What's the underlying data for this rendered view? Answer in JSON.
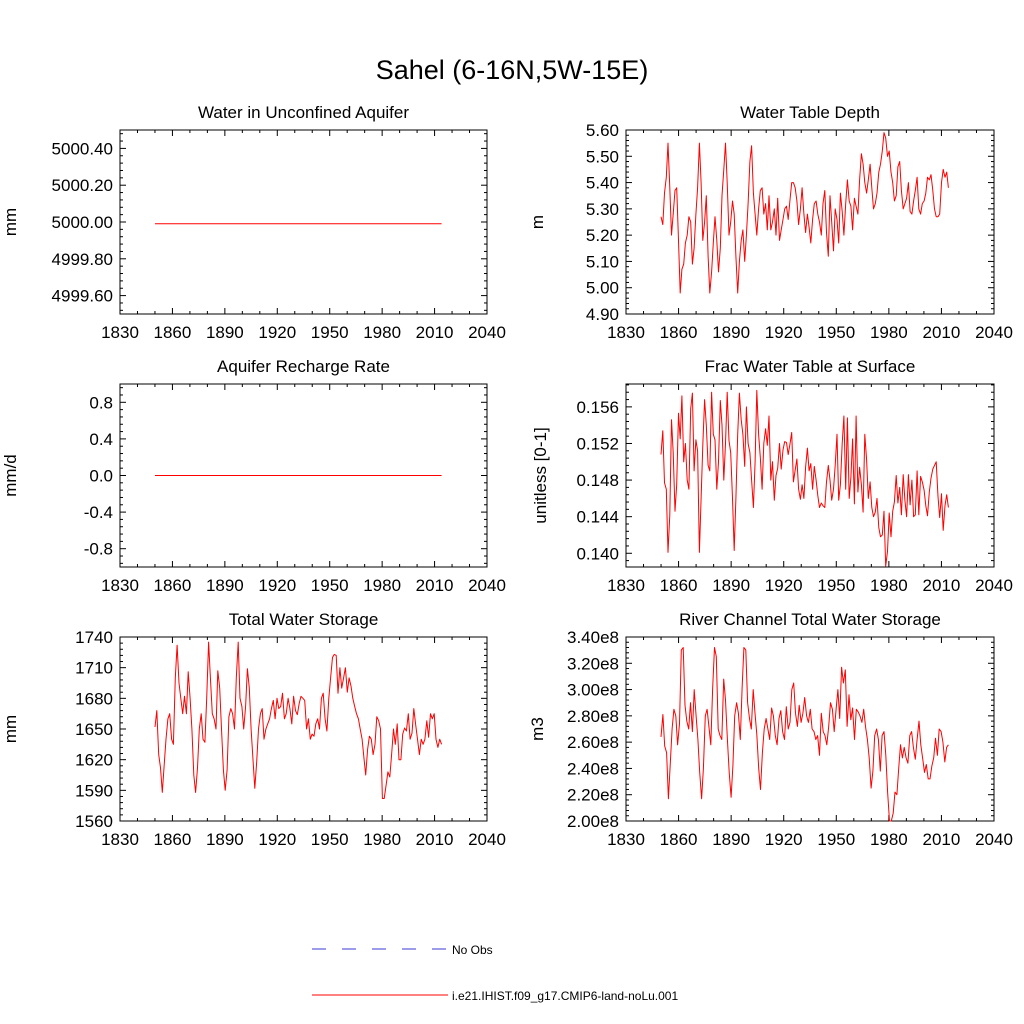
{
  "title": "Sahel (6-16N,5W-15E)",
  "colors": {
    "model": "#ff0000",
    "obs": "#3a3ad6",
    "axis": "#000000"
  },
  "legend": [
    {
      "label": "No Obs",
      "style": "dashed",
      "color": "#3a3ad6"
    },
    {
      "label": "i.e21.IHIST.f09_g17.CMIP6-land-noLu.001",
      "style": "solid",
      "color": "#ff0000"
    }
  ],
  "chart_data": [
    {
      "id": "wa",
      "type": "line",
      "title": "Water in Unconfined Aquifer",
      "ylabel": "mm",
      "xlabel": "",
      "xlim": [
        1830,
        2040
      ],
      "ylim": [
        4999.5,
        5000.5
      ],
      "xticks": [
        1830,
        1860,
        1890,
        1920,
        1950,
        1980,
        2010,
        2040
      ],
      "yticks": [
        "4999.60",
        "4999.80",
        "5000.00",
        "5000.20",
        "5000.40"
      ],
      "ytick_values": [
        4999.6,
        4999.8,
        5000.0,
        5000.2,
        5000.4
      ],
      "x_range": [
        1850,
        2014
      ],
      "series": [
        {
          "values": [
            4999.99,
            4999.99
          ]
        }
      ]
    },
    {
      "id": "wtd",
      "type": "line",
      "title": "Water Table Depth",
      "ylabel": "m",
      "xlabel": "",
      "xlim": [
        1830,
        2040
      ],
      "ylim": [
        4.9,
        5.6
      ],
      "xticks": [
        1830,
        1860,
        1890,
        1920,
        1950,
        1980,
        2010,
        2040
      ],
      "yticks": [
        "4.90",
        "5.00",
        "5.10",
        "5.20",
        "5.30",
        "5.40",
        "5.50",
        "5.60"
      ],
      "ytick_values": [
        4.9,
        5.0,
        5.1,
        5.2,
        5.3,
        5.4,
        5.5,
        5.6
      ],
      "x_range": [
        1850,
        2014
      ],
      "series": [
        {
          "values": [
            5.27,
            5.24,
            5.36,
            5.42,
            5.55,
            5.38,
            5.2,
            5.28,
            5.37,
            5.38,
            5.18,
            4.98,
            5.07,
            5.09,
            5.17,
            5.2,
            5.27,
            5.25,
            5.09,
            5.15,
            5.28,
            5.38,
            5.55,
            5.4,
            5.18,
            5.25,
            5.35,
            5.12,
            4.98,
            5.06,
            5.17,
            5.27,
            5.18,
            5.06,
            5.15,
            5.35,
            5.45,
            5.55,
            5.4,
            5.2,
            5.25,
            5.33,
            5.28,
            5.12,
            4.98,
            5.1,
            5.18,
            5.22,
            5.1,
            5.2,
            5.32,
            5.48,
            5.54,
            5.36,
            5.28,
            5.2,
            5.3,
            5.37,
            5.38,
            5.28,
            5.32,
            5.22,
            5.35,
            5.22,
            5.25,
            5.3,
            5.2,
            5.34,
            5.18,
            5.22,
            5.26,
            5.3,
            5.31,
            5.26,
            5.33,
            5.4,
            5.4,
            5.38,
            5.33,
            5.24,
            5.3,
            5.38,
            5.28,
            5.21,
            5.28,
            5.23,
            5.17,
            5.26,
            5.32,
            5.33,
            5.28,
            5.25,
            5.2,
            5.32,
            5.37,
            5.21,
            5.12,
            5.35,
            5.25,
            5.14,
            5.3,
            5.26,
            5.17,
            5.36,
            5.29,
            5.2,
            5.32,
            5.41,
            5.33,
            5.31,
            5.22,
            5.34,
            5.31,
            5.28,
            5.41,
            5.51,
            5.47,
            5.4,
            5.36,
            5.41,
            5.47,
            5.38,
            5.3,
            5.32,
            5.36,
            5.44,
            5.47,
            5.52,
            5.59,
            5.57,
            5.5,
            5.52,
            5.44,
            5.4,
            5.33,
            5.35,
            5.46,
            5.48,
            5.37,
            5.3,
            5.32,
            5.34,
            5.4,
            5.29,
            5.28,
            5.33,
            5.37,
            5.42,
            5.3,
            5.28,
            5.32,
            5.33,
            5.36,
            5.42,
            5.41,
            5.43,
            5.37,
            5.3,
            5.27,
            5.27,
            5.28,
            5.4,
            5.45,
            5.42,
            5.44,
            5.38
          ]
        }
      ]
    },
    {
      "id": "rch",
      "type": "line",
      "title": "Aquifer Recharge Rate",
      "ylabel": "mm/d",
      "xlabel": "",
      "xlim": [
        1830,
        2040
      ],
      "ylim": [
        -1.0,
        1.0
      ],
      "xticks": [
        1830,
        1860,
        1890,
        1920,
        1950,
        1980,
        2010,
        2040
      ],
      "yticks": [
        "-0.8",
        "-0.4",
        "0.0",
        "0.4",
        "0.8"
      ],
      "ytick_values": [
        -0.8,
        -0.4,
        0.0,
        0.4,
        0.8
      ],
      "x_range": [
        1850,
        2014
      ],
      "series": [
        {
          "values": [
            0.0,
            0.0
          ]
        }
      ]
    },
    {
      "id": "fwt",
      "type": "line",
      "title": "Frac Water Table at Surface",
      "ylabel": "unitless [0-1]",
      "xlabel": "",
      "xlim": [
        1830,
        2040
      ],
      "ylim": [
        0.1385,
        0.1585
      ],
      "xticks": [
        1830,
        1860,
        1890,
        1920,
        1950,
        1980,
        2010,
        2040
      ],
      "yticks": [
        "0.140",
        "0.144",
        "0.148",
        "0.152",
        "0.156"
      ],
      "ytick_values": [
        0.14,
        0.144,
        0.148,
        0.152,
        0.156
      ],
      "x_range": [
        1850,
        2014
      ],
      "series": [
        {
          "values": [
            0.1508,
            0.1534,
            0.1477,
            0.147,
            0.1401,
            0.1442,
            0.1546,
            0.151,
            0.1446,
            0.1475,
            0.1553,
            0.1525,
            0.1572,
            0.15,
            0.152,
            0.148,
            0.147,
            0.1558,
            0.1575,
            0.149,
            0.1524,
            0.1512,
            0.1401,
            0.146,
            0.1518,
            0.1568,
            0.154,
            0.1496,
            0.149,
            0.1576,
            0.153,
            0.1524,
            0.147,
            0.15,
            0.1567,
            0.154,
            0.148,
            0.152,
            0.1576,
            0.1523,
            0.151,
            0.146,
            0.1403,
            0.146,
            0.153,
            0.1575,
            0.1546,
            0.153,
            0.1495,
            0.156,
            0.152,
            0.151,
            0.148,
            0.145,
            0.15,
            0.1578,
            0.153,
            0.1505,
            0.147,
            0.152,
            0.1536,
            0.1518,
            0.155,
            0.148,
            0.15,
            0.1458,
            0.1485,
            0.1493,
            0.152,
            0.1492,
            0.1513,
            0.1522,
            0.1521,
            0.1508,
            0.1519,
            0.1532,
            0.1478,
            0.1491,
            0.1503,
            0.147,
            0.1459,
            0.1475,
            0.146,
            0.1494,
            0.1515,
            0.149,
            0.1498,
            0.147,
            0.1495,
            0.148,
            0.1463,
            0.145,
            0.1455,
            0.1452,
            0.145,
            0.1478,
            0.1496,
            0.148,
            0.1458,
            0.147,
            0.1496,
            0.153,
            0.1458,
            0.1475,
            0.152,
            0.155,
            0.147,
            0.1548,
            0.146,
            0.1483,
            0.1525,
            0.1454,
            0.155,
            0.1467,
            0.1494,
            0.1475,
            0.1445,
            0.153,
            0.1502,
            0.146,
            0.1478,
            0.145,
            0.144,
            0.1445,
            0.146,
            0.1428,
            0.1418,
            0.142,
            0.1446,
            0.1386,
            0.1402,
            0.1444,
            0.1418,
            0.1446,
            0.1456,
            0.1485,
            0.1455,
            0.1472,
            0.1442,
            0.1486,
            0.1458,
            0.144,
            0.1486,
            0.1453,
            0.148,
            0.144,
            0.1442,
            0.149,
            0.1442,
            0.1484,
            0.1478,
            0.1469,
            0.1452,
            0.1441,
            0.1467,
            0.1482,
            0.1492,
            0.1496,
            0.15,
            0.1462,
            0.1439,
            0.1465,
            0.1425,
            0.1452,
            0.1464,
            0.145
          ]
        }
      ]
    },
    {
      "id": "tws",
      "type": "line",
      "title": "Total Water Storage",
      "ylabel": "mm",
      "xlabel": "",
      "xlim": [
        1830,
        2040
      ],
      "ylim": [
        1560,
        1740
      ],
      "xticks": [
        1830,
        1860,
        1890,
        1920,
        1950,
        1980,
        2010,
        2040
      ],
      "yticks": [
        "1560",
        "1590",
        "1620",
        "1650",
        "1680",
        "1710",
        "1740"
      ],
      "ytick_values": [
        1560,
        1590,
        1620,
        1650,
        1680,
        1710,
        1740
      ],
      "x_range": [
        1850,
        2014
      ],
      "series": [
        {
          "values": [
            1652,
            1668,
            1625,
            1612,
            1588,
            1615,
            1640,
            1660,
            1665,
            1640,
            1635,
            1700,
            1732,
            1695,
            1680,
            1665,
            1682,
            1665,
            1706,
            1680,
            1650,
            1605,
            1588,
            1612,
            1650,
            1665,
            1640,
            1637,
            1680,
            1735,
            1700,
            1665,
            1660,
            1650,
            1707,
            1690,
            1650,
            1610,
            1590,
            1610,
            1662,
            1670,
            1665,
            1650,
            1700,
            1735,
            1680,
            1672,
            1650,
            1672,
            1709,
            1690,
            1650,
            1620,
            1592,
            1618,
            1650,
            1665,
            1670,
            1640,
            1650,
            1655,
            1660,
            1670,
            1678,
            1660,
            1680,
            1670,
            1672,
            1685,
            1660,
            1665,
            1680,
            1670,
            1655,
            1682,
            1668,
            1664,
            1675,
            1682,
            1680,
            1678,
            1650,
            1660,
            1640,
            1645,
            1643,
            1655,
            1660,
            1650,
            1680,
            1685,
            1660,
            1648,
            1680,
            1700,
            1720,
            1723,
            1722,
            1685,
            1710,
            1690,
            1700,
            1710,
            1686,
            1700,
            1692,
            1680,
            1672,
            1665,
            1660,
            1650,
            1640,
            1622,
            1605,
            1630,
            1643,
            1640,
            1625,
            1635,
            1662,
            1658,
            1650,
            1582,
            1582,
            1595,
            1608,
            1603,
            1625,
            1650,
            1635,
            1655,
            1620,
            1620,
            1645,
            1651,
            1648,
            1665,
            1640,
            1646,
            1670,
            1654,
            1640,
            1625,
            1640,
            1635,
            1640,
            1658,
            1642,
            1665,
            1660,
            1665,
            1640,
            1632,
            1640,
            1635
          ]
        }
      ]
    },
    {
      "id": "rvr",
      "type": "line",
      "title": "River Channel Total Water Storage",
      "ylabel": "m3",
      "xlabel": "",
      "xlim": [
        1830,
        2040
      ],
      "ylim": [
        200000000,
        340000000
      ],
      "xticks": [
        1830,
        1860,
        1890,
        1920,
        1950,
        1980,
        2010,
        2040
      ],
      "yticks": [
        "2.00e8",
        "2.20e8",
        "2.40e8",
        "2.60e8",
        "2.80e8",
        "3.00e8",
        "3.20e8",
        "3.40e8"
      ],
      "ytick_values": [
        200000000,
        220000000,
        240000000,
        260000000,
        280000000,
        300000000,
        320000000,
        340000000
      ],
      "x_range": [
        1850,
        2014
      ],
      "series": [
        {
          "values": [
            264000000,
            281000000,
            257000000,
            252000000,
            217000000,
            244000000,
            270000000,
            285000000,
            280000000,
            258000000,
            274000000,
            330000000,
            332000000,
            288000000,
            276000000,
            270000000,
            290000000,
            268000000,
            300000000,
            280000000,
            262000000,
            237000000,
            217000000,
            240000000,
            280000000,
            285000000,
            272000000,
            258000000,
            300000000,
            332000000,
            325000000,
            270000000,
            265000000,
            262000000,
            308000000,
            292000000,
            262000000,
            237000000,
            218000000,
            242000000,
            280000000,
            290000000,
            282000000,
            262000000,
            301000000,
            332000000,
            330000000,
            290000000,
            278000000,
            270000000,
            300000000,
            282000000,
            266000000,
            240000000,
            224000000,
            252000000,
            270000000,
            278000000,
            270000000,
            262000000,
            286000000,
            280000000,
            265000000,
            258000000,
            278000000,
            284000000,
            268000000,
            262000000,
            287000000,
            270000000,
            275000000,
            300000000,
            305000000,
            282000000,
            272000000,
            288000000,
            275000000,
            282000000,
            294000000,
            280000000,
            275000000,
            285000000,
            270000000,
            268000000,
            262000000,
            265000000,
            250000000,
            282000000,
            268000000,
            265000000,
            258000000,
            272000000,
            290000000,
            285000000,
            268000000,
            285000000,
            300000000,
            278000000,
            317000000,
            305000000,
            315000000,
            272000000,
            296000000,
            277000000,
            286000000,
            262000000,
            285000000,
            283000000,
            280000000,
            275000000,
            285000000,
            272000000,
            262000000,
            248000000,
            225000000,
            238000000,
            265000000,
            270000000,
            262000000,
            238000000,
            265000000,
            268000000,
            250000000,
            222000000,
            200000000,
            200000000,
            206000000,
            222000000,
            220000000,
            240000000,
            258000000,
            248000000,
            256000000,
            248000000,
            244000000,
            265000000,
            268000000,
            256000000,
            247000000,
            262000000,
            276000000,
            258000000,
            248000000,
            237000000,
            243000000,
            232000000,
            232000000,
            242000000,
            248000000,
            263000000,
            250000000,
            270000000,
            268000000,
            260000000,
            245000000,
            256000000,
            258000000
          ]
        }
      ]
    }
  ]
}
